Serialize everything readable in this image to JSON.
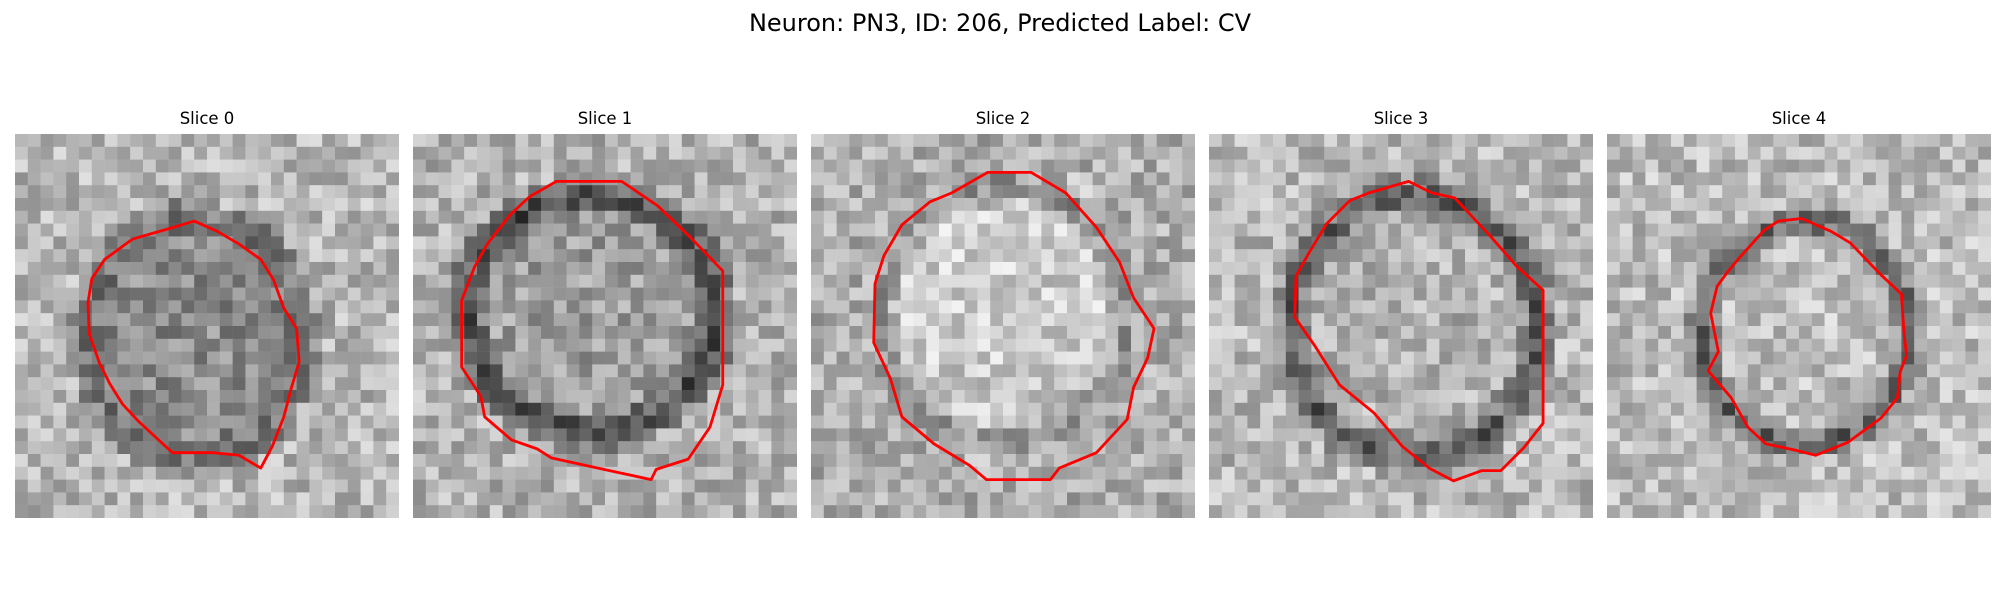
{
  "figure": {
    "title": "Neuron: PN3, ID: 206, Predicted Label: CV"
  },
  "panels": [
    {
      "title": "Slice 0"
    },
    {
      "title": "Slice 1"
    },
    {
      "title": "Slice 2"
    },
    {
      "title": "Slice 3"
    },
    {
      "title": "Slice 4"
    }
  ],
  "colors": {
    "contour": "#ff0000",
    "background": "#ffffff"
  },
  "colormap": "grayscale"
}
